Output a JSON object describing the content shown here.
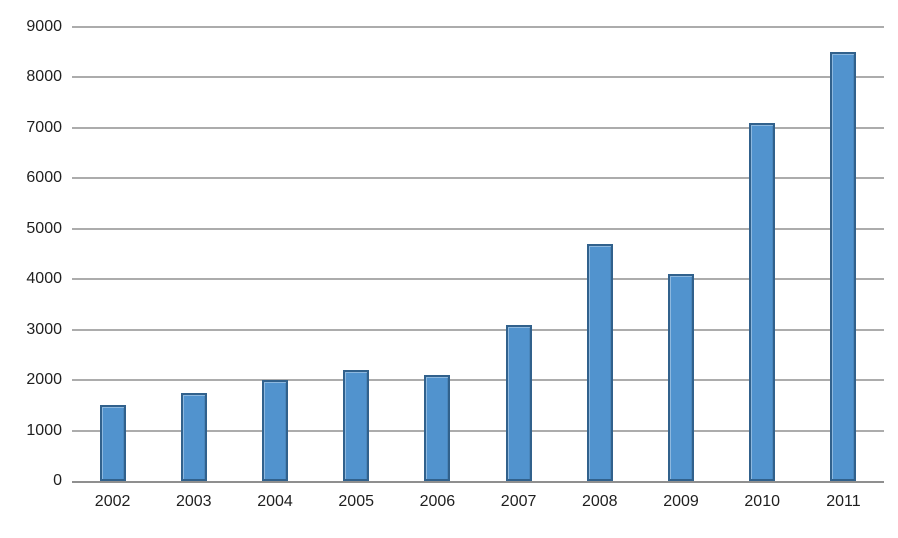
{
  "chart_data": {
    "type": "bar",
    "title": "",
    "xlabel": "",
    "ylabel": "",
    "categories": [
      "2002",
      "2003",
      "2004",
      "2005",
      "2006",
      "2007",
      "2008",
      "2009",
      "2010",
      "2011"
    ],
    "values": [
      1500,
      1750,
      2000,
      2200,
      2100,
      3100,
      4700,
      4100,
      7100,
      8500
    ],
    "ylim": [
      0,
      9000
    ],
    "yticks": [
      0,
      1000,
      2000,
      3000,
      4000,
      5000,
      6000,
      7000,
      8000,
      9000
    ],
    "grid": true,
    "legend": "none",
    "colors": {
      "background": "#ffffff",
      "bar_fill": "#5193ce",
      "bar_border": "#31618c",
      "gridline": "#acacac",
      "axis_line": "#8f8f8f",
      "tick_text": "#1f1f1f"
    }
  }
}
